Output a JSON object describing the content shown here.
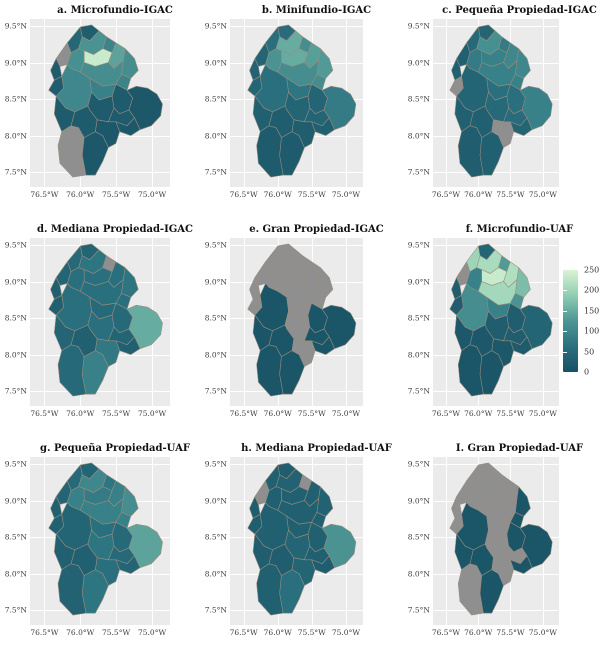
{
  "axes": {
    "x_ticks": [
      "76.5°W",
      "76.0°W",
      "75.5°W",
      "75.0°W"
    ],
    "y_ticks": [
      "9.5°N",
      "9.0°N",
      "8.5°N",
      "8.0°N",
      "7.5°N"
    ]
  },
  "legend": {
    "ticks": [
      250,
      200,
      150,
      100,
      50,
      0
    ],
    "min": 0,
    "max": 250
  },
  "colors": {
    "na": "#8f8f8f",
    "scale_stops": [
      "#175164",
      "#2a707f",
      "#4d9694",
      "#8ecdb2",
      "#d9f4d4"
    ],
    "plot_bg": "#ebebeb",
    "grid": "#ffffff",
    "border": "#9a8d7e"
  },
  "chart_data": {
    "type": "heatmap",
    "subtype": "choropleth_map_grid",
    "note": "3x3 grid of municipal choropleth maps (Cordoba, Colombia); values estimated from shared color scale 0-250; null = no data (gray)",
    "colorbar": {
      "min": 0,
      "max": 250,
      "ticks": [
        0,
        50,
        100,
        150,
        200,
        250
      ]
    },
    "region_ids": [
      "r1",
      "r2",
      "r3",
      "r4",
      "r5",
      "r6",
      "r7",
      "r8",
      "r9",
      "r10",
      "r12",
      "r13",
      "r14",
      "r15",
      "r16",
      "r17",
      "r18",
      "r19",
      "r20",
      "r21",
      "r22",
      "r23",
      "r24",
      "r25",
      "r26"
    ],
    "panels": [
      {
        "label": "a. Microfundio-IGAC",
        "values": {
          "r1": 45,
          "r2": 25,
          "r3": null,
          "r4": 20,
          "r5": 120,
          "r6": 95,
          "r7": 235,
          "r8": 140,
          "r9": 110,
          "r10": 115,
          "r12": 110,
          "r13": 95,
          "r14": 100,
          "r15": 25,
          "r16": 90,
          "r17": 20,
          "r18": 20,
          "r19": 20,
          "r20": 15,
          "r21": 15,
          "r22": 20,
          "r23": null,
          "r24": 20,
          "r25": 15,
          "r26": 15
        }
      },
      {
        "label": "b. Minifundio-IGAC",
        "values": {
          "r1": 60,
          "r2": 55,
          "r3": 40,
          "r4": 35,
          "r5": 150,
          "r6": 110,
          "r7": 150,
          "r8": 135,
          "r9": 130,
          "r10": 120,
          "r12": 110,
          "r13": 110,
          "r14": 60,
          "r15": 40,
          "r16": 70,
          "r17": 40,
          "r18": 40,
          "r19": 40,
          "r20": 80,
          "r21": 30,
          "r22": 30,
          "r23": 20,
          "r24": 25,
          "r25": 20,
          "r26": 25
        }
      },
      {
        "label": "c. Pequeña Propiedad-IGAC",
        "values": {
          "r1": 50,
          "r2": 40,
          "r3": 30,
          "r4": 30,
          "r5": 115,
          "r6": 80,
          "r7": 90,
          "r8": 100,
          "r9": 100,
          "r10": 80,
          "r12": 90,
          "r13": 90,
          "r14": 40,
          "r15": null,
          "r16": 60,
          "r17": 50,
          "r18": 60,
          "r19": 55,
          "r20": 90,
          "r21": 40,
          "r22": 30,
          "r23": 25,
          "r24": 30,
          "r25": 30,
          "r26": null
        }
      },
      {
        "label": "d. Mediana Propiedad-IGAC",
        "values": {
          "r1": 50,
          "r2": 40,
          "r3": 40,
          "r4": 30,
          "r5": 70,
          "r6": null,
          "r7": 60,
          "r8": 60,
          "r9": 70,
          "r10": 60,
          "r12": 60,
          "r13": 60,
          "r14": 60,
          "r15": 30,
          "r16": 50,
          "r17": 60,
          "r18": 50,
          "r19": 40,
          "r20": 150,
          "r21": 30,
          "r22": 40,
          "r23": 50,
          "r24": 30,
          "r25": 90,
          "r26": 75
        }
      },
      {
        "label": "e. Gran Propiedad-IGAC",
        "values": {
          "r1": null,
          "r2": null,
          "r3": null,
          "r4": null,
          "r5": null,
          "r6": null,
          "r7": null,
          "r8": null,
          "r9": null,
          "r10": null,
          "r12": null,
          "r13": null,
          "r14": 10,
          "r15": null,
          "r16": null,
          "r17": null,
          "r18": 10,
          "r19": 10,
          "r20": 10,
          "r21": 10,
          "r22": 10,
          "r23": 10,
          "r24": 10,
          "r25": 10,
          "r26": null
        }
      },
      {
        "label": "f. Microfundio-UAF",
        "values": {
          "r1": 200,
          "r2": 40,
          "r3": null,
          "r4": 25,
          "r5": 210,
          "r6": 130,
          "r7": 235,
          "r8": 215,
          "r9": 170,
          "r10": 90,
          "r12": 205,
          "r13": 120,
          "r14": 110,
          "r15": 25,
          "r16": 90,
          "r17": 25,
          "r18": 25,
          "r19": 25,
          "r20": 40,
          "r21": 20,
          "r22": 15,
          "r23": 10,
          "r24": 15,
          "r25": 10,
          "r26": 15
        }
      },
      {
        "label": "g. Pequeña Propiedad-UAF",
        "values": {
          "r1": 50,
          "r2": 40,
          "r3": 40,
          "r4": 30,
          "r5": 100,
          "r6": 70,
          "r7": 80,
          "r8": 90,
          "r9": 110,
          "r10": 90,
          "r12": 90,
          "r13": 90,
          "r14": 40,
          "r15": 30,
          "r16": 60,
          "r17": 70,
          "r18": 50,
          "r19": 50,
          "r20": 140,
          "r21": 40,
          "r22": 30,
          "r23": 35,
          "r24": 30,
          "r25": 70,
          "r26": 60
        }
      },
      {
        "label": "h. Mediana Propiedad-UAF",
        "values": {
          "r1": 30,
          "r2": 25,
          "r3": null,
          "r4": 25,
          "r5": 35,
          "r6": null,
          "r7": 30,
          "r8": 30,
          "r9": 35,
          "r10": 30,
          "r12": 30,
          "r13": 30,
          "r14": 30,
          "r15": 25,
          "r16": 30,
          "r17": 40,
          "r18": 30,
          "r19": 30,
          "r20": 120,
          "r21": 25,
          "r22": 25,
          "r23": 30,
          "r24": 25,
          "r25": 60,
          "r26": 40
        }
      },
      {
        "label": "I. Gran Propiedad-UAF",
        "values": {
          "r1": null,
          "r2": null,
          "r3": null,
          "r4": null,
          "r5": null,
          "r6": null,
          "r7": null,
          "r8": null,
          "r9": 10,
          "r10": null,
          "r12": null,
          "r13": 10,
          "r14": 10,
          "r15": null,
          "r16": null,
          "r17": null,
          "r18": 10,
          "r19": null,
          "r20": 10,
          "r21": 10,
          "r22": 10,
          "r23": null,
          "r24": 10,
          "r25": 10,
          "r26": null
        }
      }
    ]
  }
}
